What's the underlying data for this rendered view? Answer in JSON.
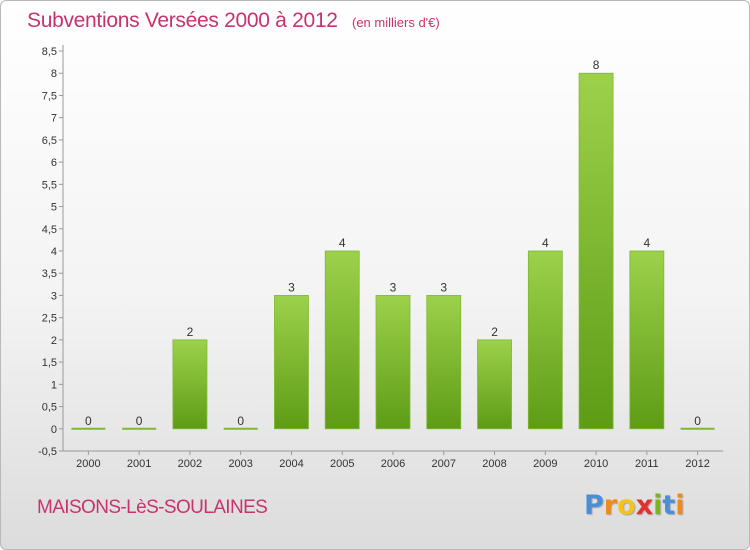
{
  "header": {
    "title": "Subventions Versées 2000 à 2012",
    "subtitle": "(en milliers d'€)"
  },
  "footer": {
    "commune": "MAISONS-LèS-SOULAINES",
    "logo": [
      "P",
      "r",
      "o",
      "x",
      "i",
      "t",
      "i"
    ],
    "logo_colors": [
      "#4a8fd6",
      "#f08a1c",
      "#f5c31a",
      "#e2322d",
      "#7ab51d",
      "#4a8fd6",
      "#f08a1c"
    ]
  },
  "colors": {
    "bar_top": "#9dd14b",
    "bar_bottom": "#5e9c15",
    "axis": "#999999",
    "grid": "#d8d8d8"
  },
  "chart_data": {
    "type": "bar",
    "title": "Subventions Versées 2000 à 2012",
    "subtitle": "(en milliers d'€)",
    "categories": [
      "2000",
      "2001",
      "2002",
      "2003",
      "2004",
      "2005",
      "2006",
      "2007",
      "2008",
      "2009",
      "2010",
      "2011",
      "2012"
    ],
    "values": [
      0,
      0,
      2,
      0,
      3,
      4,
      3,
      3,
      2,
      4,
      8,
      4,
      0
    ],
    "data_labels": [
      "0",
      "0",
      "2",
      "0",
      "3",
      "4",
      "3",
      "3",
      "2",
      "4",
      "8",
      "4",
      "0"
    ],
    "ylim": [
      -0.5,
      8.5
    ],
    "yticks": [
      "-0,5",
      "0",
      "0,5",
      "1",
      "1,5",
      "2",
      "2,5",
      "3",
      "3,5",
      "4",
      "4,5",
      "5",
      "5,5",
      "6",
      "6,5",
      "7",
      "7,5",
      "8",
      "8,5"
    ],
    "ytick_values": [
      -0.5,
      0,
      0.5,
      1,
      1.5,
      2,
      2.5,
      3,
      3.5,
      4,
      4.5,
      5,
      5.5,
      6,
      6.5,
      7,
      7.5,
      8,
      8.5
    ],
    "xlabel": "",
    "ylabel": "",
    "grid": false,
    "legend": "none"
  }
}
